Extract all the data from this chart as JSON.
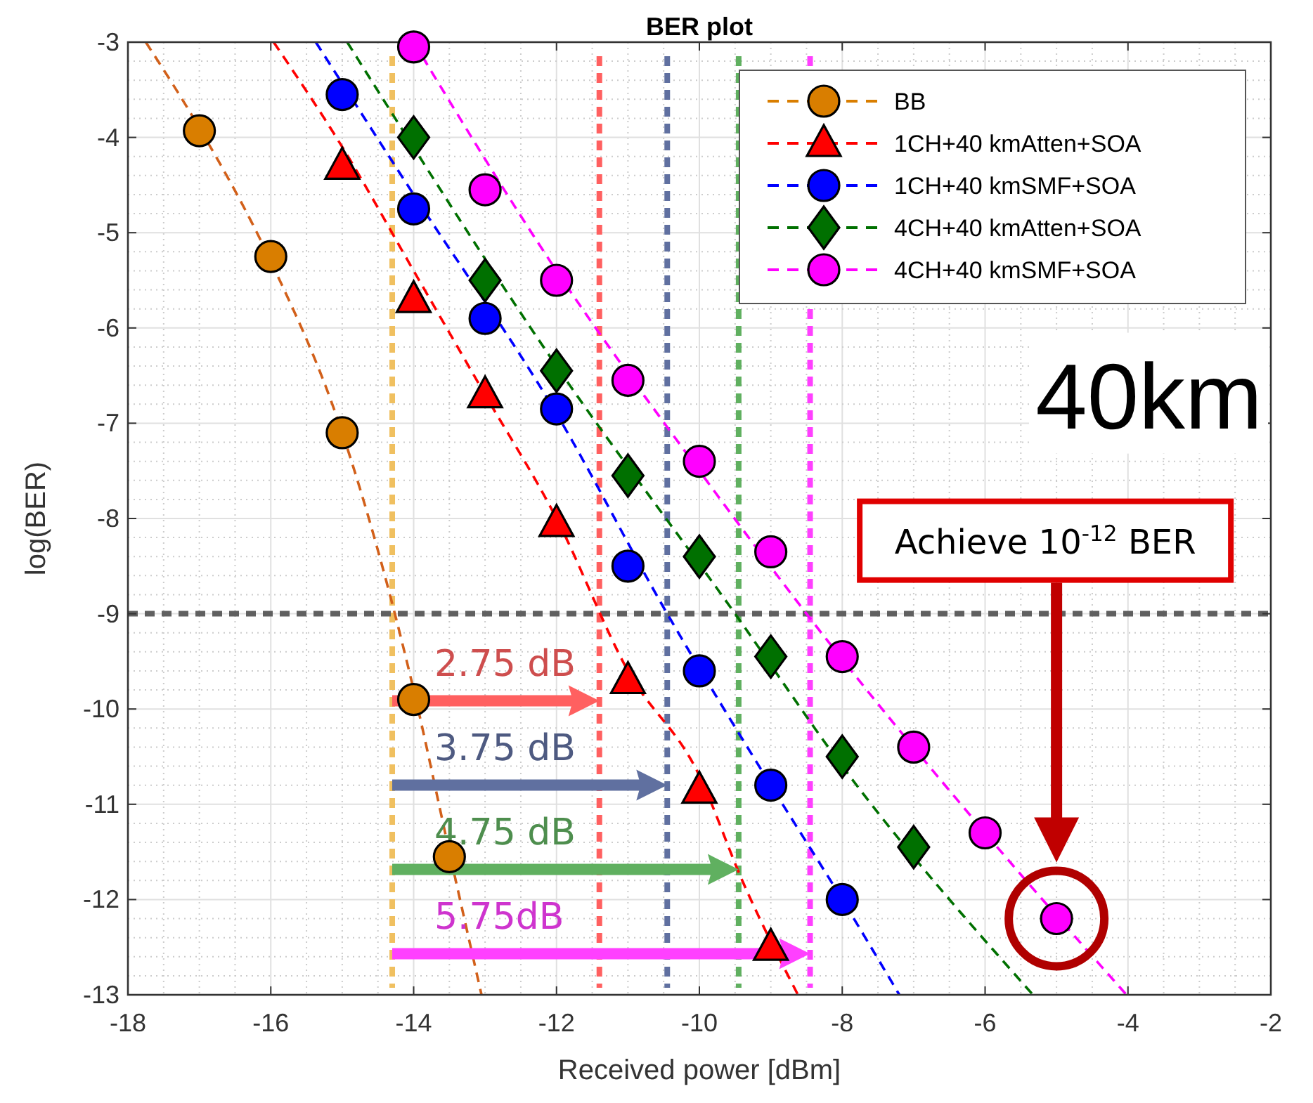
{
  "chart_data": {
    "type": "scatter",
    "title": "BER plot",
    "xlabel": "Received power [dBm]",
    "ylabel": "log(BER)",
    "xlim": [
      -18,
      -2
    ],
    "xticks": [
      -18,
      -16,
      -14,
      -12,
      -10,
      -8,
      -6,
      -4,
      -2
    ],
    "ylim": [
      -13,
      -3
    ],
    "yticks": [
      -13,
      -12,
      -11,
      -10,
      -9,
      -8,
      -7,
      -6,
      -5,
      -4,
      -3
    ],
    "grid": true,
    "legend": "top right",
    "series": [
      {
        "name": "BB",
        "color": "#d97e00",
        "marker": "circle",
        "x": [
          -17,
          -16,
          -15,
          -14,
          -13.5
        ],
        "values": [
          -3.93,
          -5.25,
          -7.1,
          -9.9,
          -11.55
        ]
      },
      {
        "name": "1CH+40 kmAtten+SOA",
        "color": "#ff0000",
        "marker": "triangle",
        "x": [
          -15,
          -14,
          -13,
          -12,
          -11,
          -10,
          -9
        ],
        "values": [
          -4.3,
          -5.7,
          -6.7,
          -8.05,
          -9.7,
          -10.85,
          -12.5
        ]
      },
      {
        "name": "1CH+40 kmSMF+SOA",
        "color": "#0000ff",
        "marker": "circle",
        "x": [
          -15,
          -14,
          -13,
          -12,
          -11,
          -10,
          -9,
          -8
        ],
        "values": [
          -3.55,
          -4.75,
          -5.9,
          -6.85,
          -8.5,
          -9.6,
          -10.8,
          -12.0
        ]
      },
      {
        "name": "4CH+40 kmAtten+SOA",
        "color": "#007000",
        "marker": "diamond",
        "x": [
          -14,
          -13,
          -12,
          -11,
          -10,
          -9,
          -8,
          -7
        ],
        "values": [
          -4.0,
          -5.5,
          -6.45,
          -7.55,
          -8.4,
          -9.45,
          -10.5,
          -11.45
        ]
      },
      {
        "name": "4CH+40 kmSMF+SOA",
        "color": "#ff00ff",
        "marker": "circle",
        "x": [
          -14,
          -13,
          -12,
          -11,
          -10,
          -9,
          -8,
          -7,
          -6,
          -5
        ],
        "values": [
          -3.05,
          -4.55,
          -5.5,
          -6.55,
          -7.4,
          -8.35,
          -9.45,
          -10.4,
          -11.3,
          -12.2
        ]
      },
      {
        "type": "line",
        "color": "#d2601a",
        "line_style": "dashed",
        "x": [
          -17.75,
          -17,
          -16,
          -15,
          -14,
          -13.5,
          -13.05
        ],
        "values": [
          -3,
          -3.9,
          -5.3,
          -7.1,
          -9.8,
          -11.5,
          -13
        ]
      },
      {
        "type": "line",
        "color": "#ff0000",
        "line_style": "dashed",
        "x": [
          -15.96,
          -15,
          -14,
          -13,
          -12,
          -11,
          -10,
          -9.4,
          -8.62
        ],
        "values": [
          -3,
          -4.1,
          -5.4,
          -6.7,
          -8.0,
          -9.6,
          -10.7,
          -11.8,
          -13
        ]
      },
      {
        "type": "line",
        "color": "#0000ff",
        "line_style": "dashed",
        "x": [
          -15.37,
          -14,
          -12,
          -10.45,
          -9,
          -8,
          -7.2
        ],
        "values": [
          -3,
          -4.6,
          -6.9,
          -9,
          -10.8,
          -12,
          -13
        ]
      },
      {
        "type": "line",
        "color": "#007000",
        "line_style": "dashed",
        "x": [
          -14.93,
          -12,
          -9.5,
          -8,
          -5.33
        ],
        "values": [
          -3,
          -6.4,
          -9,
          -10.6,
          -13
        ]
      },
      {
        "type": "line",
        "color": "#ff00ff",
        "line_style": "dashed",
        "x": [
          -14,
          -12,
          -10,
          -8.5,
          -6,
          -4.02
        ],
        "values": [
          -3,
          -5.4,
          -7.5,
          -9,
          -11.3,
          -13
        ]
      }
    ],
    "ref_lines": [
      {
        "axis": "x",
        "value": -14.3,
        "color": "#f0c060",
        "line_style": "dashed"
      },
      {
        "axis": "x",
        "value": -11.4,
        "color": "#ff6060",
        "line_style": "dashed"
      },
      {
        "axis": "x",
        "value": -10.45,
        "color": "#6070a0",
        "line_style": "dashed"
      },
      {
        "axis": "x",
        "value": -9.45,
        "color": "#60b060",
        "line_style": "dashed"
      },
      {
        "axis": "x",
        "value": -8.45,
        "color": "#ff40ff",
        "line_style": "dashed"
      },
      {
        "axis": "y",
        "value": -9,
        "color": "#606060",
        "line_style": "dashed"
      }
    ],
    "annotations": [
      "2.75 dB",
      "3.75 dB",
      "4.75 dB",
      "5.75dB",
      "40km",
      "Achieve 10$^{-12}$ BER"
    ]
  }
}
